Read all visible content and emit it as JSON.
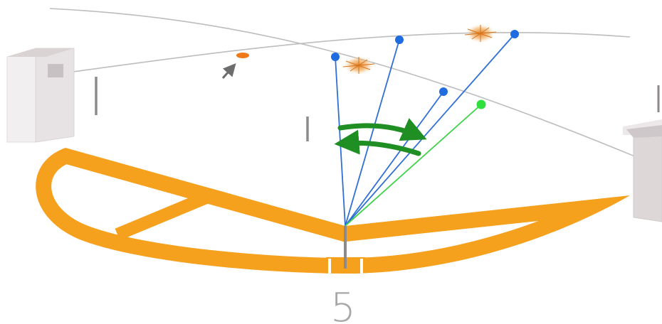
{
  "label": "5",
  "colors": {
    "field": "#f5a11d",
    "sky_line": "#b9b9b9",
    "building_front": "#e7e3e4",
    "building_side": "#cdc7c9",
    "ray": "#2f6fd6",
    "ray_green": "#3fd24a",
    "arrow": "#1f8e23",
    "marker": "#f07a18",
    "pole": "#8e8a8a"
  },
  "icons": {
    "sweep_arrows": "double-curved-arrow-icon",
    "pointer": "pointer-arrow-icon"
  }
}
